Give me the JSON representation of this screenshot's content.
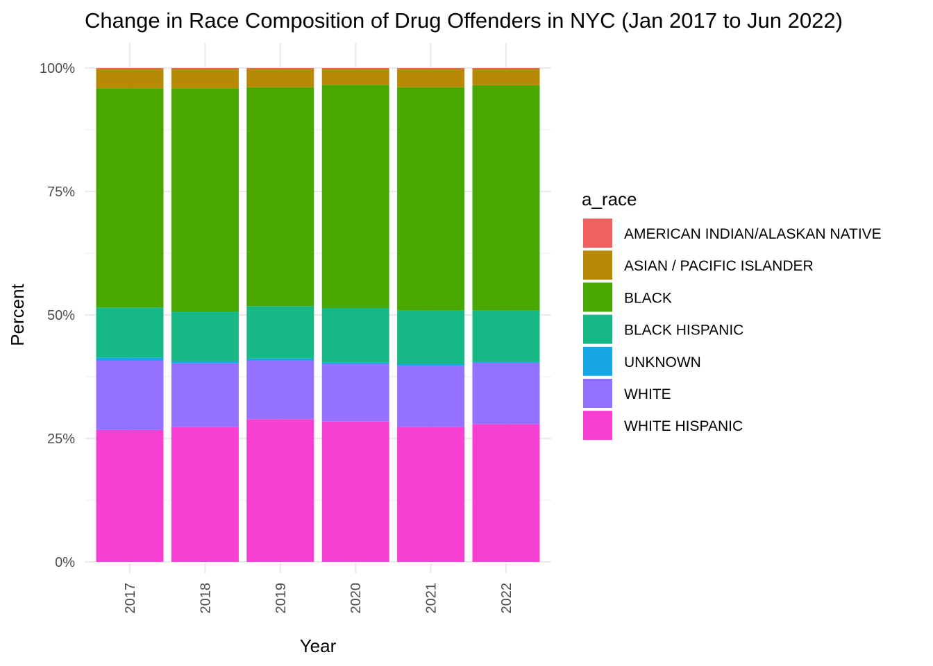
{
  "chart_data": {
    "type": "bar",
    "stacked": "percent",
    "title": "Change in Race Composition of Drug Offenders in NYC (Jan 2017 to Jun 2022)",
    "xlabel": "Year",
    "ylabel": "Percent",
    "categories": [
      "2017",
      "2018",
      "2019",
      "2020",
      "2021",
      "2022"
    ],
    "yticks": [
      "0%",
      "25%",
      "50%",
      "75%",
      "100%"
    ],
    "ylim": [
      0,
      100
    ],
    "grid": true,
    "legend": {
      "title": "a_race",
      "position": "right"
    },
    "series": [
      {
        "name": "WHITE HISPANIC",
        "color": "#F73FD1",
        "values": [
          26.7,
          27.3,
          28.9,
          28.4,
          27.3,
          27.9
        ]
      },
      {
        "name": "WHITE",
        "color": "#9471FF",
        "values": [
          14.1,
          12.9,
          11.9,
          11.7,
          12.4,
          12.4
        ]
      },
      {
        "name": "UNKNOWN",
        "color": "#18A7E6",
        "values": [
          0.6,
          0.4,
          0.4,
          0.3,
          0.4,
          0.2
        ]
      },
      {
        "name": "BLACK HISPANIC",
        "color": "#18B886",
        "values": [
          10.1,
          10.1,
          10.6,
          11.0,
          10.8,
          10.4
        ]
      },
      {
        "name": "BLACK",
        "color": "#49A800",
        "values": [
          44.4,
          45.2,
          44.3,
          45.2,
          45.2,
          45.6
        ]
      },
      {
        "name": "ASIAN / PACIFIC ISLANDER",
        "color": "#B78905",
        "values": [
          3.9,
          3.9,
          3.7,
          3.2,
          3.7,
          3.3
        ]
      },
      {
        "name": "AMERICAN INDIAN/ALASKAN NATIVE",
        "color": "#F26161",
        "values": [
          0.2,
          0.2,
          0.2,
          0.2,
          0.2,
          0.2
        ]
      }
    ]
  }
}
